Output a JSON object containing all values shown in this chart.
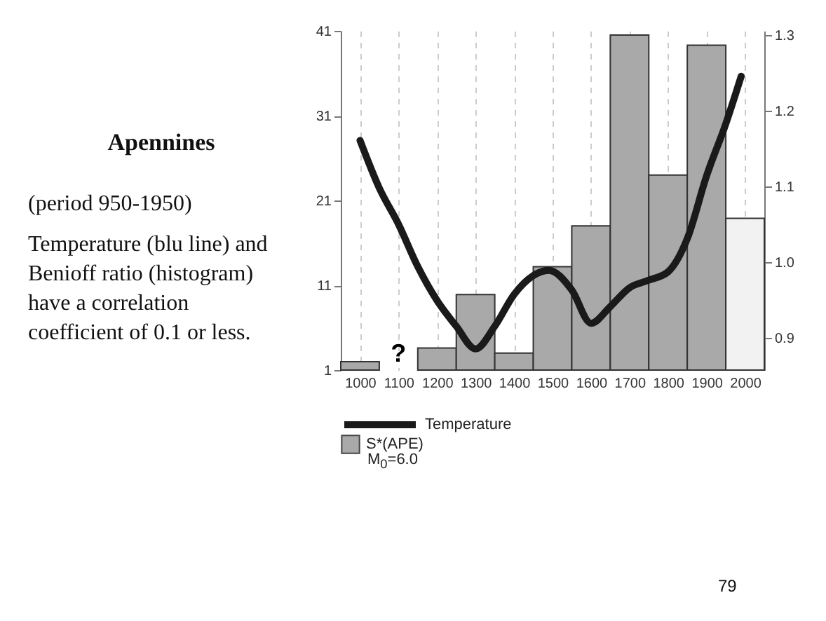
{
  "chart_data": {
    "type": "histogram",
    "title": "Apennines",
    "annotations": [
      "(period  950-1950)",
      "Temperature (blu line) and Benioff ratio (histogram) have a correlation coefficient of 0.1 or less.",
      "?",
      "M$_{0}$=6.0",
      "79"
    ],
    "xlim": [
      950,
      2050
    ],
    "xticks": [
      1000,
      1100,
      1200,
      1300,
      1400,
      1500,
      1600,
      1700,
      1800,
      1900,
      2000
    ],
    "ylim": [
      1,
      41
    ],
    "yticks": [
      1,
      11,
      21,
      31,
      41
    ],
    "y2lim": [
      0.857,
      1.306
    ],
    "y2ticks": [
      0.9,
      {
        "value": 1,
        "label": "1.0"
      },
      1.1,
      1.2,
      1.3
    ],
    "grid": "x",
    "legend": "bottom left",
    "series": [
      {
        "name": "S*(APE)",
        "color": "#a9a9a9",
        "colors": [
          "#a9a9a9",
          null,
          "#a9a9a9",
          "#a9a9a9",
          "#a9a9a9",
          "#a9a9a9",
          "#a9a9a9",
          "#a9a9a9",
          "#a9a9a9",
          "#a9a9a9",
          "#f2f2f2"
        ],
        "bins": [
          950,
          1050,
          1150,
          1250,
          1350,
          1450,
          1550,
          1650,
          1750,
          1850,
          1950,
          2050
        ],
        "values": [
          2,
          null,
          3.6,
          9.9,
          3,
          13.2,
          18,
          40.5,
          24,
          39.3,
          18.9
        ]
      },
      {
        "type": "line",
        "name": "Temperature",
        "axis": "y2",
        "color": "#1a1a1a",
        "x": [
          1000,
          1050,
          1100,
          1150,
          1200,
          1250,
          1300,
          1350,
          1400,
          1450,
          1490,
          1550,
          1600,
          1650,
          1700,
          1750,
          1800,
          1850,
          1900,
          1950,
          1990
        ],
        "values": [
          1.161,
          1.098,
          1.05,
          0.994,
          0.949,
          0.915,
          0.885,
          0.915,
          0.957,
          0.982,
          0.989,
          0.963,
          0.919,
          0.941,
          0.966,
          0.976,
          0.987,
          1.031,
          1.114,
          1.183,
          1.246
        ]
      }
    ]
  }
}
